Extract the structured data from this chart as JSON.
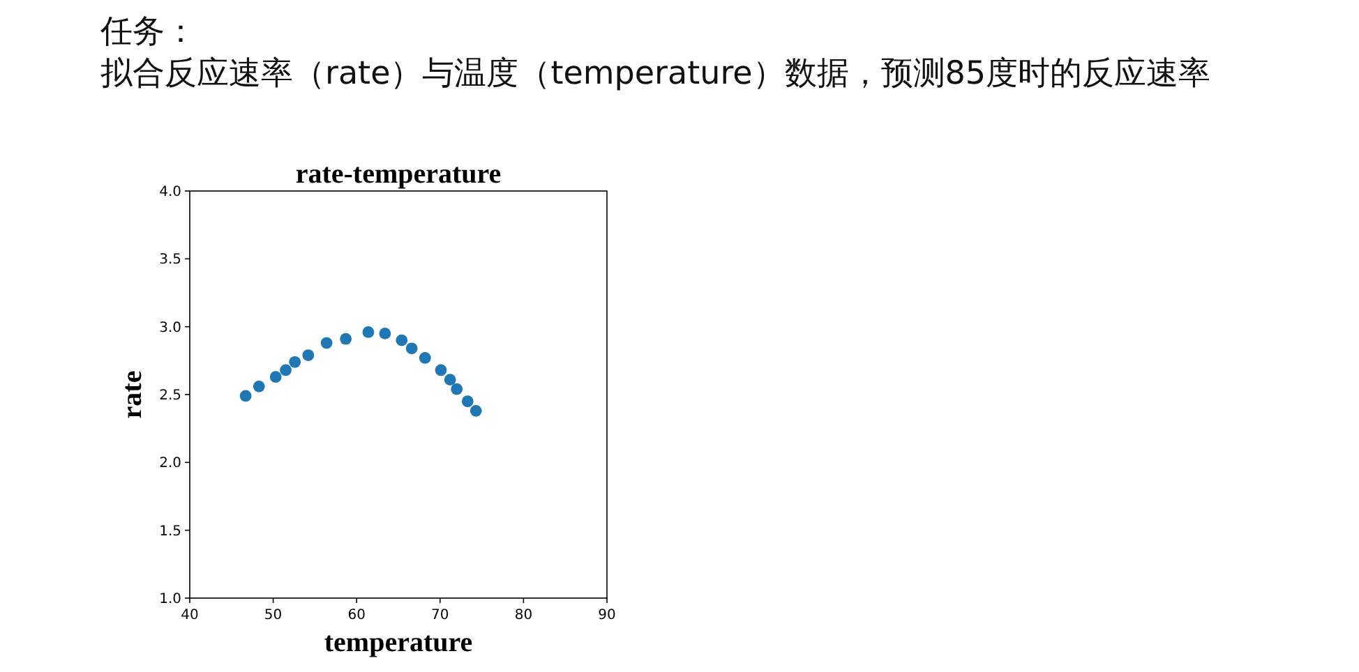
{
  "chart_data": {
    "type": "scatter",
    "title": "rate-temperature",
    "xlabel": "temperature",
    "ylabel": "rate",
    "annotations": [
      "任务：",
      "拟合反应速率（rate）与温度（temperature）数据，预测85度时的反应速率"
    ],
    "x": [
      46.7,
      48.3,
      50.3,
      51.5,
      52.6,
      54.2,
      56.4,
      58.7,
      61.4,
      63.4,
      65.4,
      66.6,
      68.2,
      70.1,
      71.2,
      72.0,
      73.3,
      74.3
    ],
    "series": [
      {
        "color": "#1f77b4",
        "values": [
          2.49,
          2.56,
          2.63,
          2.68,
          2.74,
          2.79,
          2.88,
          2.91,
          2.96,
          2.95,
          2.9,
          2.84,
          2.77,
          2.68,
          2.61,
          2.54,
          2.45,
          2.38
        ]
      }
    ],
    "xlim": [
      40,
      90
    ],
    "xticks": [
      40,
      50,
      60,
      70,
      80,
      90
    ],
    "ylim": [
      1.0,
      4.0
    ],
    "yticks": [
      {
        "value": 1.0,
        "label": "1.0"
      },
      {
        "value": 1.5,
        "label": "1.5"
      },
      {
        "value": 2.0,
        "label": "2.0"
      },
      {
        "value": 2.5,
        "label": "2.5"
      },
      {
        "value": 3.0,
        "label": "3.0"
      },
      {
        "value": 3.5,
        "label": "3.5"
      },
      {
        "value": 4.0,
        "label": "4.0"
      }
    ],
    "grid": false,
    "marker": "circle"
  }
}
